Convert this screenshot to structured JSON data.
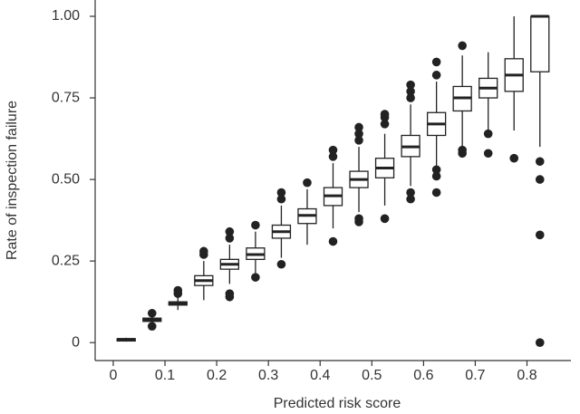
{
  "chart_data": {
    "type": "box",
    "x_label": "Predicted risk score",
    "y_label": "Rate of inspection failure",
    "x": [
      0.025,
      0.075,
      0.125,
      0.175,
      0.225,
      0.275,
      0.325,
      0.375,
      0.425,
      0.475,
      0.525,
      0.575,
      0.625,
      0.675,
      0.725,
      0.775,
      0.825
    ],
    "median": [
      0.01,
      0.07,
      0.12,
      0.19,
      0.24,
      0.27,
      0.34,
      0.39,
      0.45,
      0.5,
      0.535,
      0.6,
      0.67,
      0.75,
      0.78,
      0.82,
      1.0
    ],
    "q1": [
      0.005,
      0.065,
      0.115,
      0.175,
      0.225,
      0.255,
      0.32,
      0.365,
      0.42,
      0.475,
      0.505,
      0.57,
      0.635,
      0.71,
      0.75,
      0.77,
      0.83
    ],
    "q3": [
      0.012,
      0.075,
      0.125,
      0.205,
      0.255,
      0.29,
      0.36,
      0.41,
      0.475,
      0.525,
      0.565,
      0.635,
      0.705,
      0.785,
      0.81,
      0.87,
      1.0
    ],
    "whisker_low": [
      0.003,
      0.06,
      0.1,
      0.13,
      0.18,
      0.21,
      0.26,
      0.3,
      0.35,
      0.4,
      0.42,
      0.48,
      0.54,
      0.6,
      0.65,
      0.65,
      0.6
    ],
    "whisker_high": [
      0.015,
      0.08,
      0.14,
      0.25,
      0.3,
      0.34,
      0.42,
      0.47,
      0.55,
      0.6,
      0.64,
      0.73,
      0.8,
      0.88,
      0.89,
      1.0,
      1.0
    ],
    "outliers": [
      [],
      [
        0.05,
        0.09
      ],
      [
        0.15,
        0.16
      ],
      [
        0.27,
        0.28
      ],
      [
        0.14,
        0.15,
        0.32,
        0.34
      ],
      [
        0.2,
        0.36
      ],
      [
        0.24,
        0.44,
        0.46
      ],
      [
        0.49
      ],
      [
        0.31,
        0.57,
        0.59
      ],
      [
        0.37,
        0.38,
        0.62,
        0.64,
        0.66
      ],
      [
        0.38,
        0.67,
        0.69,
        0.7
      ],
      [
        0.44,
        0.46,
        0.75,
        0.77,
        0.79
      ],
      [
        0.46,
        0.51,
        0.53,
        0.82,
        0.86
      ],
      [
        0.58,
        0.59,
        0.91
      ],
      [
        0.58,
        0.64
      ],
      [
        0.565
      ],
      [
        0,
        0.33,
        0.5,
        0.555
      ]
    ],
    "xlim": [
      -0.035,
      0.885
    ],
    "xticks": [
      0,
      0.1,
      0.2,
      0.3,
      0.4,
      0.5,
      0.6,
      0.7,
      0.8
    ],
    "ylim": [
      -0.055,
      1.05
    ],
    "yticks": [
      {
        "value": 0,
        "label": "0"
      },
      {
        "value": 0.25,
        "label": "0.25"
      },
      {
        "value": 0.5,
        "label": "0.50"
      },
      {
        "value": 0.75,
        "label": "0.75"
      },
      {
        "value": 1,
        "label": "1.00"
      }
    ],
    "color": "#222222"
  }
}
